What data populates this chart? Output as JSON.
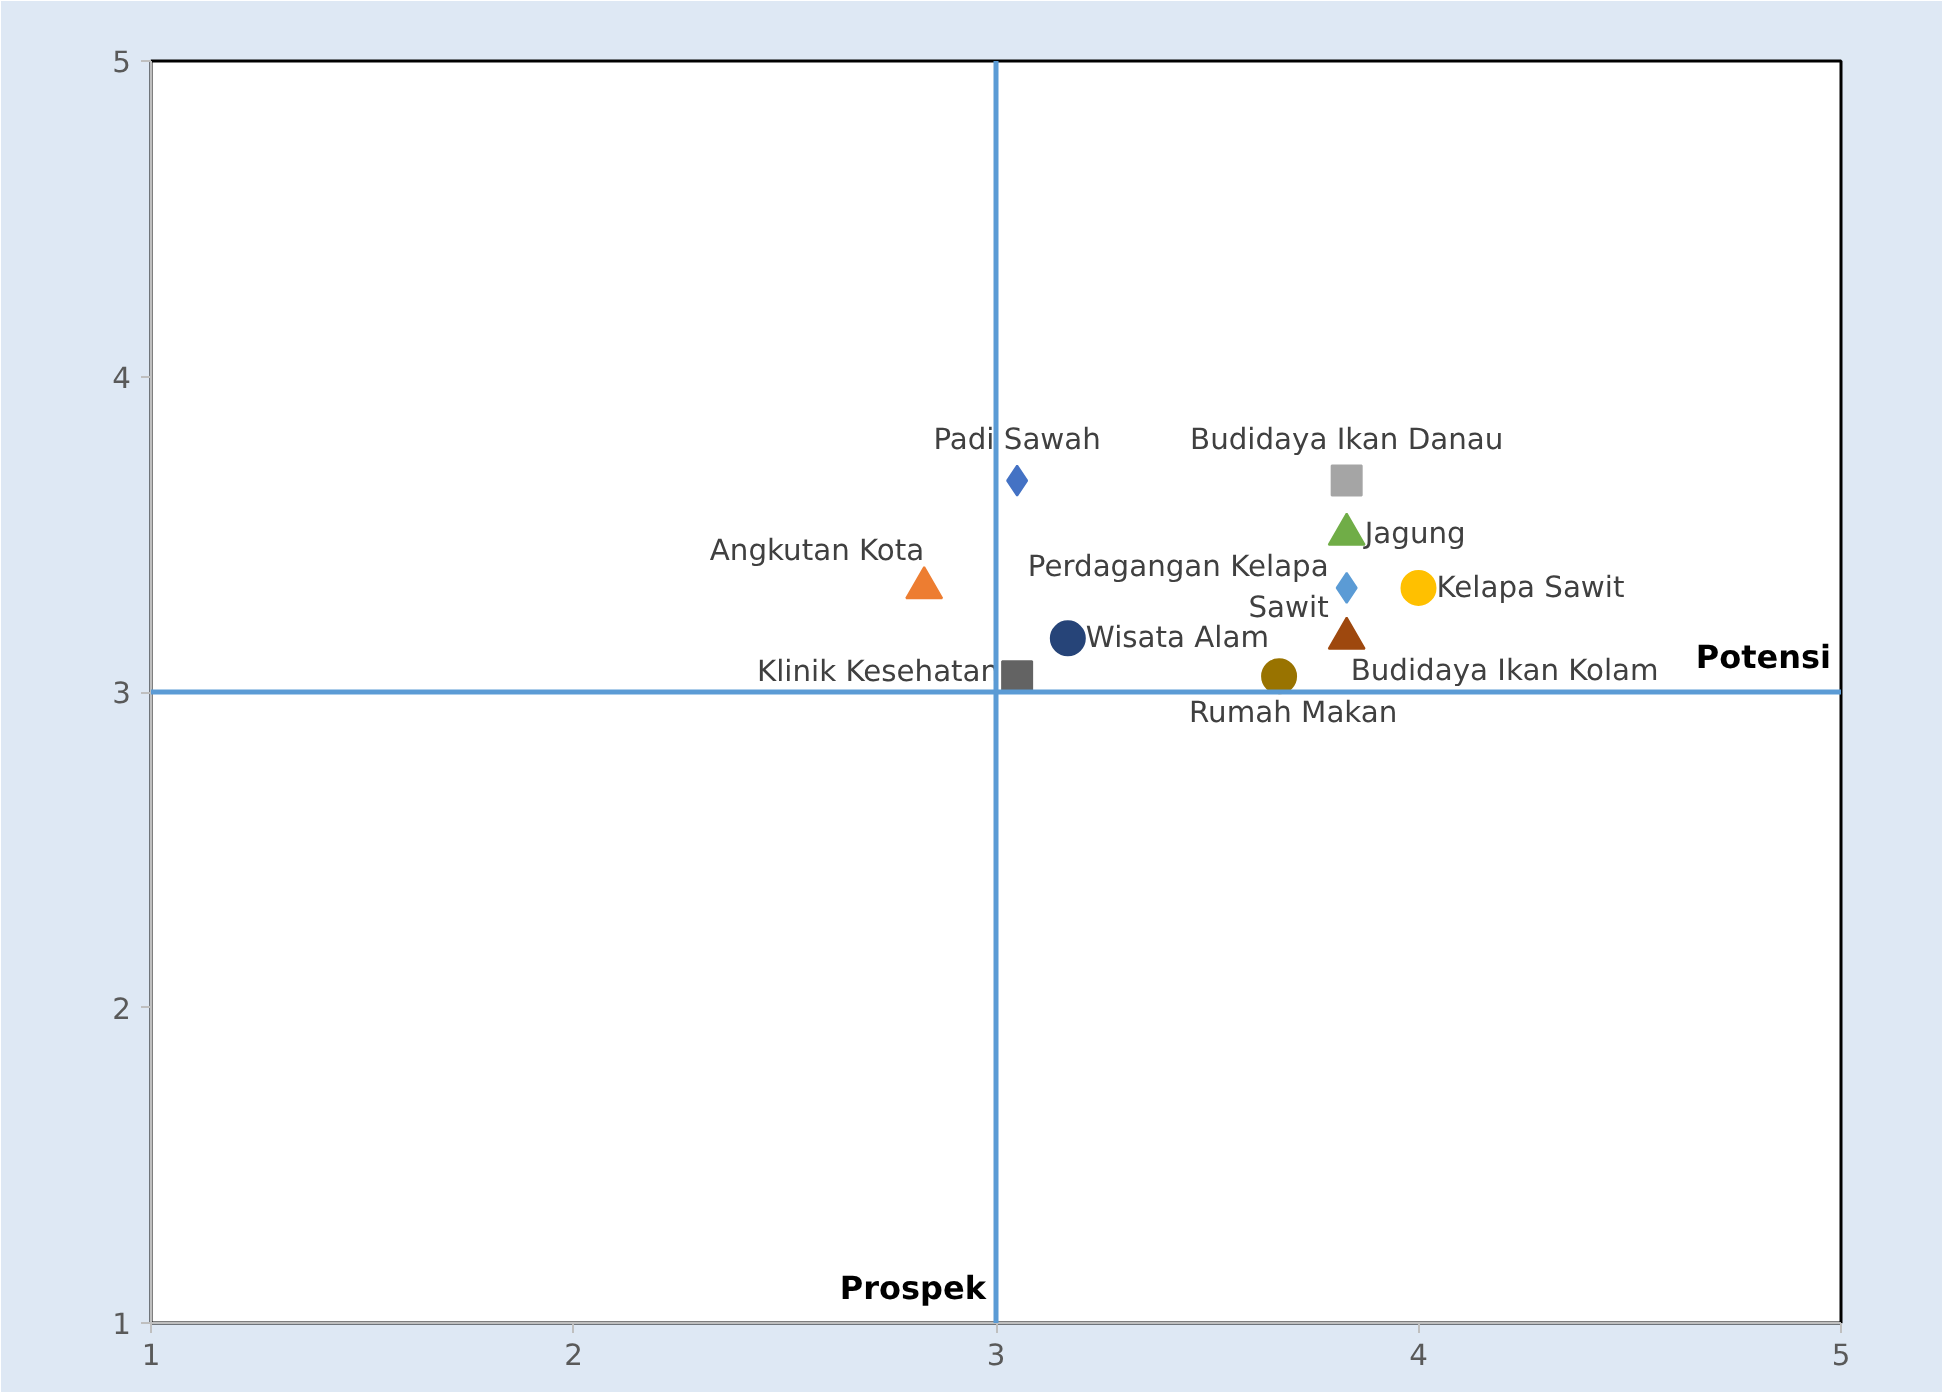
{
  "chart_data": {
    "type": "scatter",
    "xlim": [
      1,
      5
    ],
    "ylim": [
      1,
      5
    ],
    "xticks": [
      1,
      2,
      3,
      4,
      5
    ],
    "yticks": [
      1,
      2,
      3,
      4,
      5
    ],
    "grid": false,
    "series": [
      {
        "name": "Padi Sawah",
        "color": "#4472c4",
        "marker": "diamond",
        "x": [
          3.05
        ],
        "values": [
          3.67
        ]
      },
      {
        "name": "Budidaya Ikan Danau",
        "color": "#a5a5a5",
        "marker": "square",
        "x": [
          3.83
        ],
        "values": [
          3.67
        ]
      },
      {
        "name": "Jagung",
        "color": "#70ad47",
        "marker": "triangle",
        "x": [
          3.83
        ],
        "values": [
          3.5
        ]
      },
      {
        "name": "Perdagangan Kelapa Sawit",
        "color": "#5b9bd5",
        "marker": "diamond",
        "x": [
          3.83
        ],
        "values": [
          3.33
        ]
      },
      {
        "name": "Kelapa Sawit",
        "color": "#ffc000",
        "marker": "circle",
        "x": [
          4.0
        ],
        "values": [
          3.33
        ]
      },
      {
        "name": "Budidaya Ikan Kolam",
        "color": "#9e480e",
        "marker": "triangle",
        "x": [
          3.83
        ],
        "values": [
          3.17
        ]
      },
      {
        "name": "Angkutan Kota",
        "color": "#ed7d31",
        "marker": "triangle",
        "x": [
          2.83
        ],
        "values": [
          3.33
        ]
      },
      {
        "name": "Wisata Alam",
        "color": "#264478",
        "marker": "circle",
        "x": [
          3.17
        ],
        "values": [
          3.17
        ]
      },
      {
        "name": "Klinik Kesehatan",
        "color": "#636363",
        "marker": "square",
        "x": [
          3.05
        ],
        "values": [
          3.05
        ]
      },
      {
        "name": "Rumah Makan",
        "color": "#997300",
        "marker": "circle",
        "x": [
          3.67
        ],
        "values": [
          3.05
        ]
      }
    ],
    "ref_lines": [
      {
        "axis": "x",
        "value": 3,
        "label": "Prospek",
        "color": "#5b9bd5"
      },
      {
        "axis": "y",
        "value": 3,
        "label": "Potensi",
        "color": "#5b9bd5"
      }
    ]
  }
}
